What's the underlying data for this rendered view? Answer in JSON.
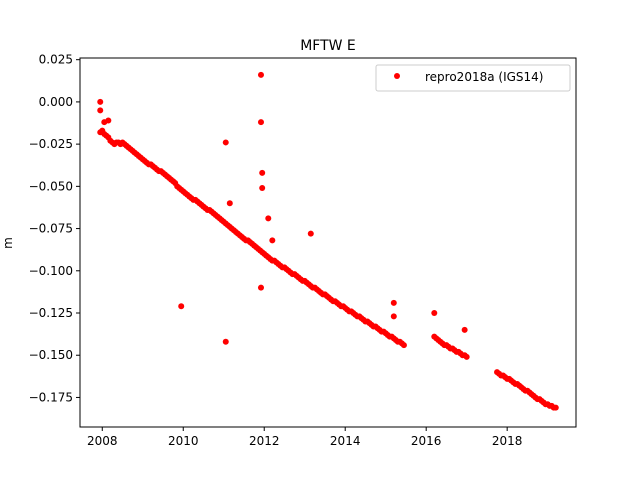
{
  "chart_data": {
    "type": "scatter",
    "title": "MFTW E",
    "xlabel": "",
    "ylabel": "m",
    "xlim": [
      2007.45,
      2019.7
    ],
    "ylim": [
      -0.1925,
      0.026
    ],
    "xticks": [
      2008,
      2010,
      2012,
      2014,
      2016,
      2018
    ],
    "xtick_labels": [
      "2008",
      "2010",
      "2012",
      "2014",
      "2016",
      "2018"
    ],
    "yticks": [
      0.025,
      0.0,
      -0.025,
      -0.05,
      -0.075,
      -0.1,
      -0.125,
      -0.15,
      -0.175
    ],
    "ytick_labels": [
      "0.025",
      "0.000",
      "−0.025",
      "−0.050",
      "−0.075",
      "−0.100",
      "−0.125",
      "−0.150",
      "−0.175"
    ],
    "grid": false,
    "legend_position": "upper right",
    "series": [
      {
        "name": "repro2018a (IGS14)",
        "color": "#ff0000",
        "marker": "circle",
        "x": [
          2007.95,
          2008.0,
          2008.05,
          2008.1,
          2008.15,
          2008.2,
          2008.25,
          2008.3,
          2008.35,
          2008.4,
          2008.45,
          2008.5,
          2008.55,
          2008.6,
          2008.65,
          2008.7,
          2008.75,
          2008.8,
          2008.85,
          2008.9,
          2008.95,
          2009.0,
          2009.05,
          2009.1,
          2009.15,
          2009.2,
          2009.25,
          2009.3,
          2009.35,
          2009.4,
          2009.45,
          2009.5,
          2009.55,
          2009.6,
          2009.65,
          2009.7,
          2009.75,
          2009.8,
          2009.85,
          2009.9,
          2009.95,
          2010.0,
          2010.05,
          2010.1,
          2010.15,
          2010.2,
          2010.25,
          2010.3,
          2010.35,
          2010.4,
          2010.45,
          2010.5,
          2010.55,
          2010.6,
          2010.65,
          2010.7,
          2010.75,
          2010.8,
          2010.85,
          2010.9,
          2010.95,
          2011.0,
          2011.05,
          2011.1,
          2011.15,
          2011.2,
          2011.25,
          2011.3,
          2011.35,
          2011.4,
          2011.45,
          2011.5,
          2011.55,
          2011.6,
          2011.65,
          2011.7,
          2011.75,
          2011.8,
          2011.85,
          2011.9,
          2011.95,
          2012.0,
          2012.05,
          2012.1,
          2012.15,
          2012.2,
          2012.25,
          2012.3,
          2012.35,
          2012.4,
          2012.45,
          2012.5,
          2012.55,
          2012.6,
          2012.65,
          2012.7,
          2012.75,
          2012.8,
          2012.85,
          2012.9,
          2012.95,
          2013.0,
          2013.05,
          2013.1,
          2013.15,
          2013.2,
          2013.25,
          2013.3,
          2013.35,
          2013.4,
          2013.45,
          2013.5,
          2013.55,
          2013.6,
          2013.65,
          2013.7,
          2013.75,
          2013.8,
          2013.85,
          2013.9,
          2013.95,
          2014.0,
          2014.05,
          2014.1,
          2014.15,
          2014.2,
          2014.25,
          2014.3,
          2014.35,
          2014.4,
          2014.45,
          2014.5,
          2014.55,
          2014.6,
          2014.65,
          2014.7,
          2014.75,
          2014.8,
          2014.85,
          2014.9,
          2014.95,
          2015.0,
          2015.05,
          2015.1,
          2015.15,
          2015.2,
          2015.25,
          2015.3,
          2015.35,
          2015.4,
          2015.45,
          2016.2,
          2016.25,
          2016.3,
          2016.35,
          2016.4,
          2016.45,
          2016.5,
          2016.55,
          2016.6,
          2016.65,
          2016.7,
          2016.75,
          2016.8,
          2016.85,
          2016.9,
          2016.95,
          2017.0,
          2017.75,
          2017.8,
          2017.85,
          2017.9,
          2017.95,
          2018.0,
          2018.05,
          2018.1,
          2018.15,
          2018.2,
          2018.25,
          2018.3,
          2018.35,
          2018.4,
          2018.45,
          2018.5,
          2018.55,
          2018.6,
          2018.65,
          2018.7,
          2018.75,
          2018.8,
          2018.85,
          2018.9,
          2018.95,
          2019.0,
          2019.05,
          2019.1,
          2019.15,
          2019.2,
          2007.95,
          2007.95,
          2008.05,
          2008.15,
          2009.95,
          2011.05,
          2011.05,
          2011.15,
          2011.92,
          2011.92,
          2011.92,
          2011.95,
          2011.95,
          2012.1,
          2012.2,
          2013.15,
          2015.2,
          2015.2,
          2016.2,
          2016.95
        ],
        "y": [
          -0.018,
          -0.017,
          -0.019,
          -0.02,
          -0.021,
          -0.023,
          -0.024,
          -0.025,
          -0.024,
          -0.024,
          -0.025,
          -0.024,
          -0.025,
          -0.026,
          -0.027,
          -0.028,
          -0.029,
          -0.03,
          -0.031,
          -0.032,
          -0.033,
          -0.034,
          -0.035,
          -0.036,
          -0.037,
          -0.037,
          -0.038,
          -0.039,
          -0.04,
          -0.041,
          -0.041,
          -0.042,
          -0.043,
          -0.044,
          -0.045,
          -0.046,
          -0.047,
          -0.048,
          -0.05,
          -0.051,
          -0.052,
          -0.053,
          -0.054,
          -0.055,
          -0.056,
          -0.057,
          -0.058,
          -0.058,
          -0.059,
          -0.06,
          -0.061,
          -0.062,
          -0.063,
          -0.064,
          -0.064,
          -0.065,
          -0.066,
          -0.067,
          -0.068,
          -0.069,
          -0.07,
          -0.071,
          -0.072,
          -0.073,
          -0.074,
          -0.075,
          -0.076,
          -0.077,
          -0.078,
          -0.079,
          -0.08,
          -0.081,
          -0.082,
          -0.082,
          -0.083,
          -0.084,
          -0.085,
          -0.086,
          -0.087,
          -0.088,
          -0.089,
          -0.09,
          -0.091,
          -0.092,
          -0.093,
          -0.094,
          -0.094,
          -0.095,
          -0.096,
          -0.097,
          -0.098,
          -0.098,
          -0.099,
          -0.1,
          -0.101,
          -0.102,
          -0.102,
          -0.103,
          -0.104,
          -0.105,
          -0.106,
          -0.106,
          -0.107,
          -0.108,
          -0.109,
          -0.11,
          -0.11,
          -0.111,
          -0.112,
          -0.113,
          -0.114,
          -0.114,
          -0.115,
          -0.116,
          -0.117,
          -0.118,
          -0.118,
          -0.119,
          -0.12,
          -0.121,
          -0.121,
          -0.122,
          -0.123,
          -0.124,
          -0.124,
          -0.125,
          -0.126,
          -0.127,
          -0.127,
          -0.128,
          -0.129,
          -0.13,
          -0.13,
          -0.131,
          -0.132,
          -0.133,
          -0.133,
          -0.134,
          -0.135,
          -0.136,
          -0.136,
          -0.137,
          -0.138,
          -0.139,
          -0.139,
          -0.14,
          -0.141,
          -0.142,
          -0.142,
          -0.143,
          -0.144,
          -0.139,
          -0.14,
          -0.141,
          -0.142,
          -0.143,
          -0.144,
          -0.144,
          -0.145,
          -0.146,
          -0.146,
          -0.147,
          -0.148,
          -0.148,
          -0.149,
          -0.15,
          -0.15,
          -0.151,
          -0.16,
          -0.161,
          -0.162,
          -0.162,
          -0.163,
          -0.164,
          -0.164,
          -0.165,
          -0.166,
          -0.167,
          -0.167,
          -0.168,
          -0.169,
          -0.17,
          -0.171,
          -0.171,
          -0.172,
          -0.173,
          -0.174,
          -0.175,
          -0.176,
          -0.176,
          -0.177,
          -0.178,
          -0.179,
          -0.179,
          -0.18,
          -0.18,
          -0.181,
          -0.181,
          0.0,
          -0.005,
          -0.012,
          -0.011,
          -0.121,
          -0.024,
          -0.142,
          -0.06,
          0.016,
          -0.012,
          -0.11,
          -0.042,
          -0.051,
          -0.069,
          -0.082,
          -0.078,
          -0.119,
          -0.127,
          -0.125,
          -0.135
        ]
      }
    ]
  }
}
